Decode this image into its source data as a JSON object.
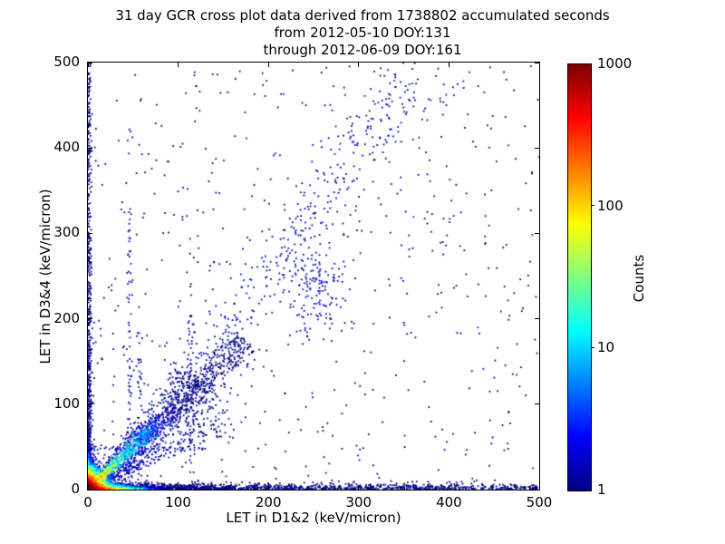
{
  "header": {
    "line1": "31 day GCR cross plot data derived from 1738802 accumulated seconds",
    "line2": "from 2012-05-10 DOY:131",
    "line3": "through 2012-06-09 DOY:161"
  },
  "chart_data": {
    "type": "scatter",
    "subtype": "2d-density-cross-plot",
    "title_lines": [
      "31 day GCR cross plot data derived from 1738802 accumulated seconds",
      "from 2012-05-10 DOY:131",
      "through 2012-06-09 DOY:161"
    ],
    "xlabel": "LET in D1&2 (keV/micron)",
    "ylabel": "LET in D3&4 (keV/micron)",
    "xlim": [
      0,
      500
    ],
    "ylim": [
      0,
      500
    ],
    "x_ticks": [
      0,
      100,
      200,
      300,
      400,
      500
    ],
    "y_ticks": [
      0,
      100,
      200,
      300,
      400,
      500
    ],
    "grid": false,
    "colorbar": {
      "label": "Counts",
      "scale": "log",
      "range": [
        1,
        1000
      ],
      "ticks": [
        1,
        10,
        100,
        1000
      ],
      "colormap": "jet",
      "gradient_stops": [
        {
          "pos": 0.0,
          "color": "#00007f"
        },
        {
          "pos": 0.125,
          "color": "#0000ff"
        },
        {
          "pos": 0.375,
          "color": "#00ffff"
        },
        {
          "pos": 0.625,
          "color": "#ffff00"
        },
        {
          "pos": 0.875,
          "color": "#ff0000"
        },
        {
          "pos": 1.0,
          "color": "#7f0000"
        }
      ]
    },
    "features": [
      "very dense hot spot at the origin with counts up to ~1000 (red core, orange/yellow/green/cyan shells)",
      "bright ridge along y=x from the origin, dense to ~(75,75), fading out near (175,175)",
      "fan of low-count events spreading between slopes ~0.4 and ~1.5 out to radius ~180",
      "dense single/low-count band hugging the x-axis all the way to x=500 (warm colors only below x~30)",
      "column of events hugging the y-axis up to y=500",
      "sparse diagonal band of slope ~1.4 running from ~(90,100) to ~(370,495) with a denser clump near (250,240)",
      "faint vertical streaks near x=46, x=57 and x=113, faint horizontal streak near y=48",
      "isolated single-count (dark navy) events scattered over the whole plane"
    ],
    "structures": [
      {
        "kind": "corner",
        "count": 2800,
        "scale_x": 8,
        "scale_y": 8,
        "peak": 1000,
        "falloff": 6.5
      },
      {
        "kind": "ridge",
        "count": 1300,
        "x0": 0,
        "y0": 0,
        "x1": 175,
        "y1": 175,
        "power": 1.7,
        "spread0": 1.3,
        "spread_grow": 0.045,
        "peak": 70,
        "falloff": 30
      },
      {
        "kind": "blob",
        "count": 90,
        "cx": 65,
        "cy": 66,
        "sx": 6,
        "sy": 5,
        "base": 2,
        "peak": 9
      },
      {
        "kind": "wedge",
        "count": 950,
        "angle_min": 22,
        "angle_max": 57,
        "r_max": 180,
        "r_power": 1.7,
        "peak": 3,
        "falloff": 45
      },
      {
        "kind": "axis_band",
        "axis": "x",
        "count": 2400,
        "length": 500,
        "len_power": 3.4,
        "thickness": 3.2,
        "peak": 700,
        "len_falloff": 13,
        "thick_falloff": 2.2
      },
      {
        "kind": "axis_band",
        "axis": "y",
        "count": 850,
        "length": 500,
        "len_power": 3.1,
        "thickness": 2.0,
        "peak": 350,
        "len_falloff": 9,
        "thick_falloff": 1.8
      },
      {
        "kind": "band",
        "count": 330,
        "x0": 90,
        "y0": 100,
        "x1": 370,
        "y1": 495,
        "spread_x": 16,
        "spread_y": 20,
        "peak": 2
      },
      {
        "kind": "blob",
        "count": 150,
        "cx": 252,
        "cy": 237,
        "sx": 20,
        "sy": 27,
        "base": 1,
        "peak": 3
      },
      {
        "kind": "vstreak",
        "count": 80,
        "x": 46,
        "y_max": 330,
        "spread": 1.3
      },
      {
        "kind": "vstreak",
        "count": 45,
        "x": 57,
        "y_max": 190,
        "spread": 1.3
      },
      {
        "kind": "vstreak",
        "count": 45,
        "x": 113,
        "y_max": 230,
        "spread": 1.6
      },
      {
        "kind": "hstreak",
        "count": 55,
        "y": 48,
        "x_max": 130,
        "spread": 1.3
      },
      {
        "kind": "uniform",
        "count": 600,
        "x_max": 500,
        "y_max": 500
      }
    ]
  }
}
